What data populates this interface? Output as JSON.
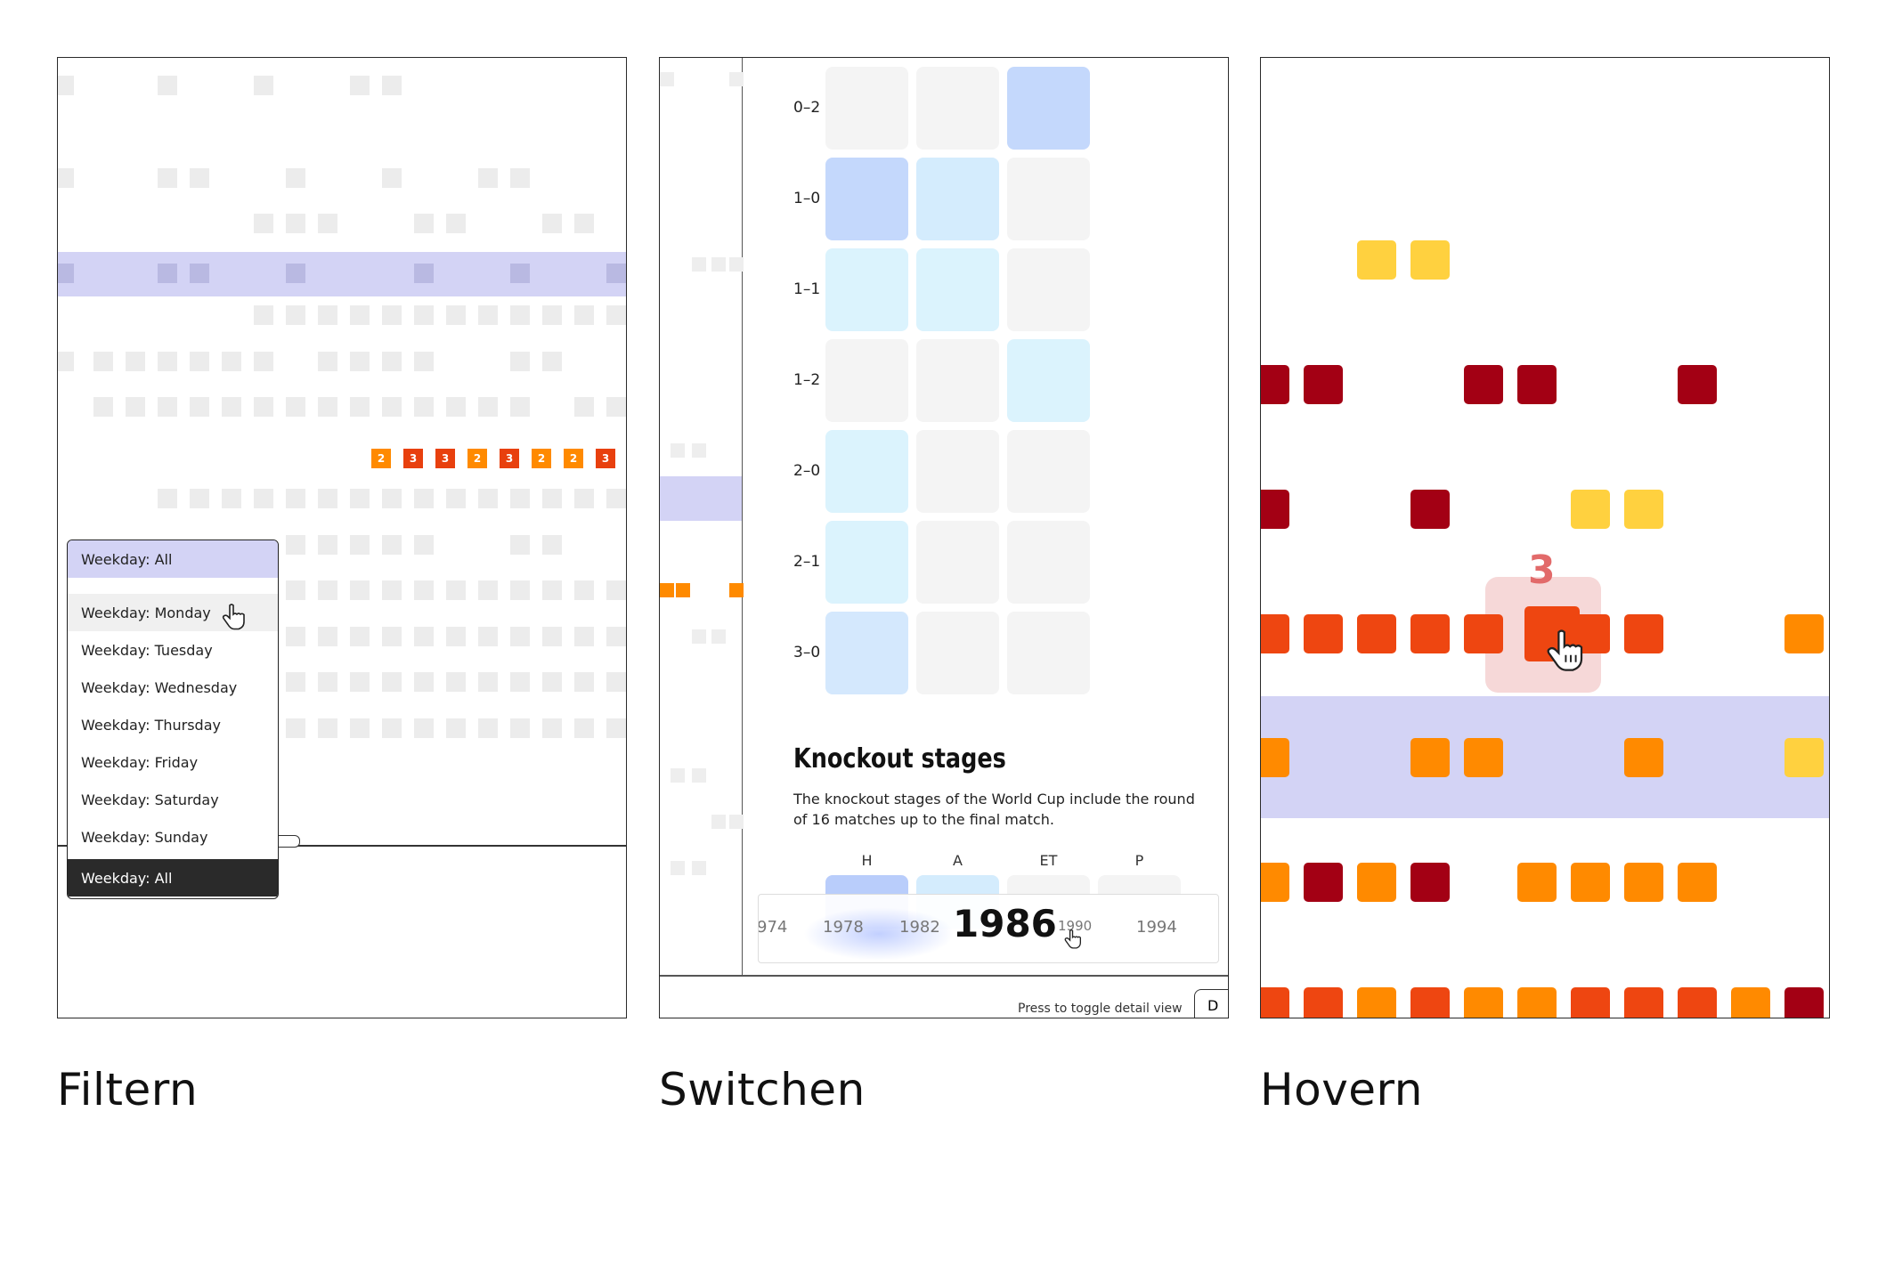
{
  "captions": {
    "filter": "Filtern",
    "switch": "Switchen",
    "hover": "Hovern"
  },
  "filter_panel": {
    "dropdown": {
      "selected": "Weekday: All",
      "options": [
        "Weekday: Monday",
        "Weekday: Tuesday",
        "Weekday: Wednesday",
        "Weekday: Thursday",
        "Weekday: Friday",
        "Weekday: Saturday",
        "Weekday: Sunday"
      ],
      "footer": "Weekday: All"
    },
    "highlight_row": [
      {
        "label": "2",
        "color": "#ff8a00"
      },
      {
        "label": "3",
        "color": "#e8400e"
      },
      {
        "label": "3",
        "color": "#e8400e"
      },
      {
        "label": "2",
        "color": "#ff8a00"
      },
      {
        "label": "3",
        "color": "#e8400e"
      },
      {
        "label": "2",
        "color": "#ff8a00"
      },
      {
        "label": "2",
        "color": "#ff8a00"
      },
      {
        "label": "3",
        "color": "#e8400e"
      }
    ]
  },
  "switch_panel": {
    "score_rows": [
      "0–2",
      "1–0",
      "1–1",
      "1–2",
      "2–0",
      "2–1",
      "3–0"
    ],
    "section_title": "Knockout stages",
    "section_desc": "The knockout stages of the World Cup include the round of 16 matches up to the final match.",
    "columns": [
      "H",
      "A",
      "ET",
      "P"
    ],
    "years": {
      "left_cut": "974",
      "y1": "1978",
      "y2": "1982",
      "current": "1986",
      "y3": "1990",
      "y4": "1994"
    },
    "footer_text": "Press to toggle detail view",
    "footer_key": "D"
  },
  "hover_panel": {
    "tooltip_value": "3",
    "colors": {
      "dark_red": "#a30014",
      "red_orange": "#ee4611",
      "orange": "#ff8a00",
      "yellow": "#ffd13f"
    }
  }
}
